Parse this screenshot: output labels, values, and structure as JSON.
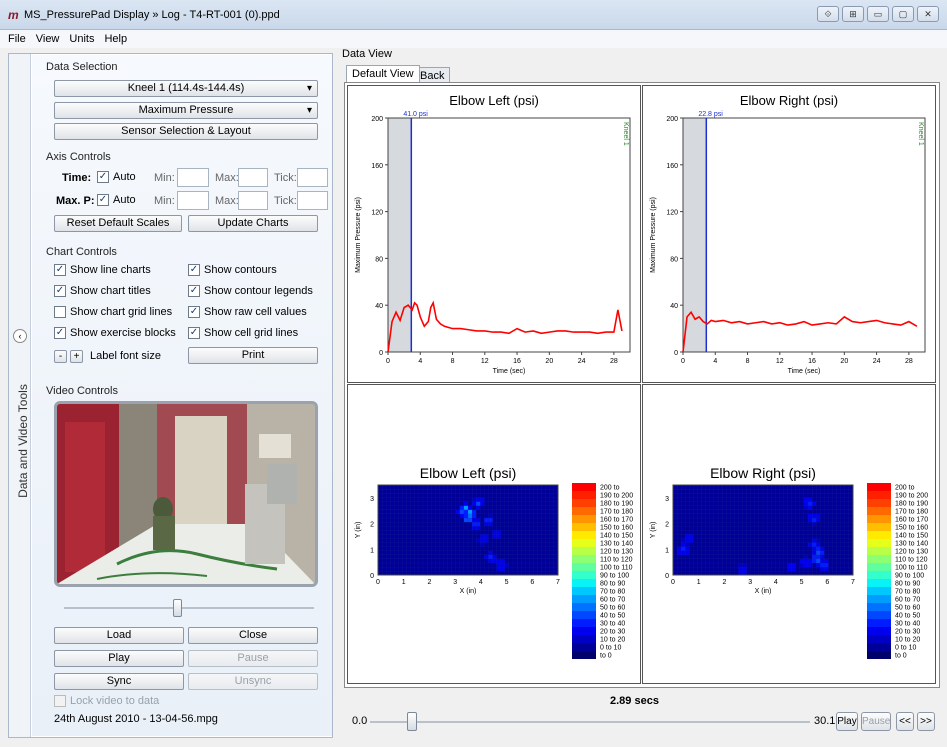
{
  "window": {
    "title": "MS_PressurePad Display » Log - T4-RT-001 (0).ppd",
    "logo": "m",
    "buttons": [
      "⟐",
      "⊞",
      "▭",
      "▢",
      "✕"
    ]
  },
  "menu": [
    "File",
    "View",
    "Units",
    "Help"
  ],
  "left_panel": {
    "vertical_tab": "Data and Video Tools",
    "collapse_glyph": "‹",
    "data_selection": {
      "title": "Data Selection",
      "dropdown1": "Kneel 1 (114.4s-144.4s)",
      "dropdown2": "Maximum Pressure",
      "button": "Sensor Selection & Layout"
    },
    "axis_controls": {
      "title": "Axis Controls",
      "rows": [
        {
          "label": "Time:",
          "auto": "Auto",
          "min": "Min:",
          "max": "Max:",
          "tick": "Tick:"
        },
        {
          "label": "Max. P:",
          "auto": "Auto",
          "min": "Min:",
          "max": "Max:",
          "tick": "Tick:"
        }
      ],
      "reset": "Reset Default Scales",
      "update": "Update Charts"
    },
    "chart_controls": {
      "title": "Chart Controls",
      "options": [
        {
          "label": "Show line charts",
          "checked": true
        },
        {
          "label": "Show contours",
          "checked": true
        },
        {
          "label": "Show chart titles",
          "checked": true
        },
        {
          "label": "Show contour legends",
          "checked": true
        },
        {
          "label": "Show chart grid lines",
          "checked": false
        },
        {
          "label": "Show raw cell values",
          "checked": true
        },
        {
          "label": "Show exercise blocks",
          "checked": true
        },
        {
          "label": "Show cell grid lines",
          "checked": true
        }
      ],
      "minus": "-",
      "plus": "+",
      "font_label": "Label font size",
      "print": "Print"
    },
    "video_controls": {
      "title": "Video Controls",
      "load": "Load",
      "close": "Close",
      "play": "Play",
      "pause": "Pause",
      "sync": "Sync",
      "unsync": "Unsync",
      "lock": "Lock video to data",
      "filename": "24th August 2010 - 13-04-56.mpg",
      "slider": 0.45
    }
  },
  "data_view": {
    "title": "Data View",
    "tabs": [
      "Default View",
      "Back"
    ]
  },
  "chart_data": [
    {
      "type": "line",
      "title": "Elbow Left (psi)",
      "xlabel": "Time (sec)",
      "ylabel": "Maximum Pressure (psi)",
      "xlim": [
        0,
        30
      ],
      "ylim": [
        0,
        200
      ],
      "xticks": [
        0,
        4,
        8,
        12,
        16,
        20,
        24,
        28
      ],
      "yticks": [
        0,
        40,
        80,
        120,
        160,
        200
      ],
      "cursor_x": 2.89,
      "cursor_label": "41.0 psi",
      "block_label": "Kneel 1",
      "series": [
        {
          "color": "#ff0000",
          "x": [
            0,
            0.5,
            1,
            1.5,
            2,
            2.5,
            3,
            3.3,
            3.6,
            4,
            4.5,
            5,
            5.3,
            5.6,
            6,
            6.5,
            7,
            8,
            9,
            10,
            11,
            12,
            13,
            14,
            15,
            16,
            17,
            18,
            19,
            20,
            21,
            22,
            23,
            24,
            25,
            26,
            27,
            28,
            28.5,
            29
          ],
          "y": [
            0,
            26,
            34,
            27,
            38,
            40,
            36,
            42,
            40,
            30,
            22,
            26,
            38,
            42,
            28,
            24,
            22,
            20,
            20,
            19,
            18,
            18,
            17,
            17,
            16,
            20,
            17,
            18,
            16,
            17,
            18,
            18,
            17,
            17,
            17,
            16,
            17,
            17,
            36,
            18
          ]
        }
      ]
    },
    {
      "type": "line",
      "title": "Elbow Right (psi)",
      "xlabel": "Time (sec)",
      "ylabel": "Maximum Pressure (psi)",
      "xlim": [
        0,
        30
      ],
      "ylim": [
        0,
        200
      ],
      "xticks": [
        0,
        4,
        8,
        12,
        16,
        20,
        24,
        28
      ],
      "yticks": [
        0,
        40,
        80,
        120,
        160,
        200
      ],
      "cursor_x": 2.89,
      "cursor_label": "22.8 psi",
      "block_label": "Kneel 1",
      "series": [
        {
          "color": "#ff0000",
          "x": [
            0,
            0.5,
            1,
            1.5,
            2,
            2.5,
            3,
            3.5,
            4,
            5,
            6,
            7,
            8,
            9,
            10,
            11,
            12,
            13,
            14,
            15,
            16,
            17,
            18,
            19,
            20,
            21,
            22,
            23,
            24,
            25,
            26,
            27,
            28,
            29
          ],
          "y": [
            0,
            30,
            34,
            28,
            30,
            26,
            24,
            27,
            26,
            27,
            25,
            26,
            24,
            25,
            26,
            24,
            25,
            23,
            24,
            26,
            23,
            24,
            25,
            24,
            30,
            26,
            25,
            26,
            27,
            25,
            24,
            23,
            26,
            22
          ]
        }
      ]
    },
    {
      "type": "heatmap",
      "title": "Elbow Left (psi)",
      "xlabel": "X (in)",
      "ylabel": "Y (in)",
      "xlim": [
        0,
        7
      ],
      "ylim": [
        0,
        3.5
      ],
      "xticks": [
        0,
        1,
        2,
        3,
        4,
        5,
        6,
        7
      ],
      "yticks": [
        0,
        1,
        2,
        3
      ],
      "hot": [
        [
          3.4,
          2.6,
          0.35
        ],
        [
          3.6,
          2.4,
          0.45
        ],
        [
          3.5,
          2.2,
          0.3
        ],
        [
          3.8,
          2.0,
          0.2
        ],
        [
          3.3,
          2.5,
          0.2
        ],
        [
          3.9,
          2.8,
          0.18
        ],
        [
          4.3,
          2.1,
          0.15
        ],
        [
          4.6,
          1.6,
          0.12
        ],
        [
          4.1,
          1.4,
          0.1
        ],
        [
          4.4,
          0.7,
          0.12
        ],
        [
          4.8,
          0.4,
          0.1
        ]
      ]
    },
    {
      "type": "heatmap",
      "title": "Elbow Right (psi)",
      "xlabel": "X (in)",
      "ylabel": "Y (in)",
      "xlim": [
        0,
        7
      ],
      "ylim": [
        0,
        3.5
      ],
      "xticks": [
        0,
        1,
        2,
        3,
        4,
        5,
        6,
        7
      ],
      "yticks": [
        0,
        1,
        2,
        3
      ],
      "hot": [
        [
          5.6,
          0.6,
          0.3
        ],
        [
          5.7,
          0.9,
          0.25
        ],
        [
          5.5,
          1.2,
          0.15
        ],
        [
          5.9,
          0.4,
          0.2
        ],
        [
          5.3,
          2.8,
          0.1
        ],
        [
          5.5,
          2.2,
          0.12
        ],
        [
          0.4,
          1.0,
          0.1
        ],
        [
          0.6,
          1.4,
          0.08
        ],
        [
          4.6,
          0.3,
          0.08
        ],
        [
          2.7,
          0.2,
          0.08
        ],
        [
          5.2,
          0.5,
          0.1
        ]
      ]
    }
  ],
  "legend": {
    "labels": [
      "200 to",
      "190 to 200",
      "180 to 190",
      "170 to 180",
      "160 to 170",
      "150 to 160",
      "140 to 150",
      "130 to 140",
      "120 to 130",
      "110 to 120",
      "100 to 110",
      "90 to 100",
      "80 to 90",
      "70 to 80",
      "60 to 70",
      "50 to 60",
      "40 to 50",
      "30 to 40",
      "20 to 30",
      "10 to 20",
      "0 to 10",
      "to 0"
    ],
    "colors": [
      "#ff0000",
      "#ff2000",
      "#ff4000",
      "#ff6a00",
      "#ff9500",
      "#ffbf00",
      "#ffea00",
      "#e5ff1a",
      "#b8ff47",
      "#8cff73",
      "#5fffa0",
      "#33ffcc",
      "#07f3f8",
      "#00c8ff",
      "#009dff",
      "#0072ff",
      "#0047ff",
      "#001cff",
      "#0000ee",
      "#0000c3",
      "#000098",
      "#00006c"
    ]
  },
  "bottom": {
    "time": "2.89 secs",
    "start": "0.0",
    "end": "30.1",
    "play": "Play",
    "pause": "Pause",
    "rew": "<<",
    "ffw": ">>",
    "slider": 0.096
  }
}
